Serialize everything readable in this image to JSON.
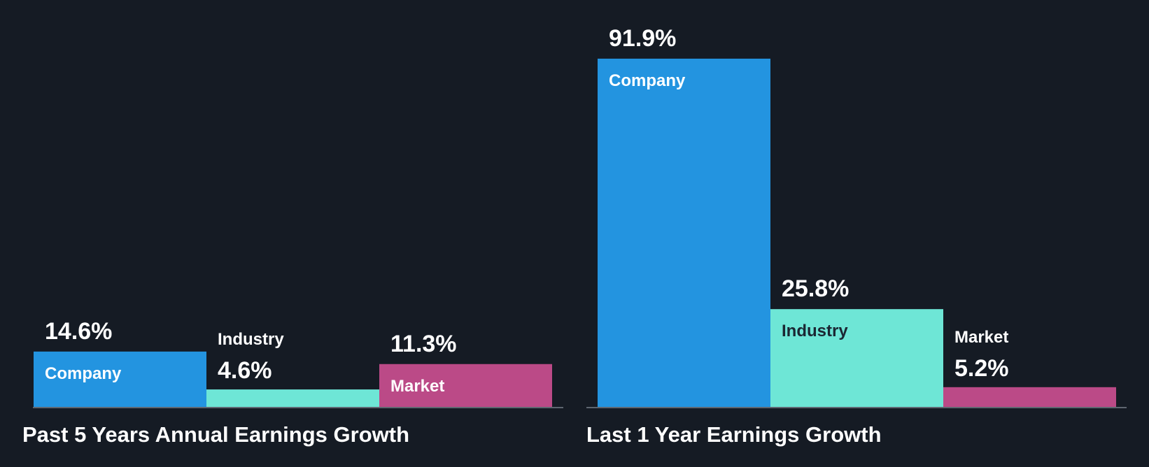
{
  "colors": {
    "background": "#151b24",
    "company": "#2394e0",
    "industry": "#6ee6d6",
    "market": "#bb4a87",
    "axis": "#5e6670",
    "label_light": "#ffffff",
    "label_dark": "#1b2733"
  },
  "chart_data": [
    {
      "type": "bar",
      "title": "Past 5 Years Annual Earnings Growth",
      "categories": [
        "Company",
        "Industry",
        "Market"
      ],
      "values": [
        14.6,
        4.6,
        11.3
      ],
      "value_labels": [
        "14.6%",
        "4.6%",
        "11.3%"
      ],
      "unit": "%",
      "ylim": [
        0,
        100
      ],
      "grid": false,
      "legend": "none"
    },
    {
      "type": "bar",
      "title": "Last 1 Year Earnings Growth",
      "categories": [
        "Company",
        "Industry",
        "Market"
      ],
      "values": [
        91.9,
        25.8,
        5.2
      ],
      "value_labels": [
        "91.9%",
        "25.8%",
        "5.2%"
      ],
      "unit": "%",
      "ylim": [
        0,
        100
      ],
      "grid": false,
      "legend": "none"
    }
  ]
}
